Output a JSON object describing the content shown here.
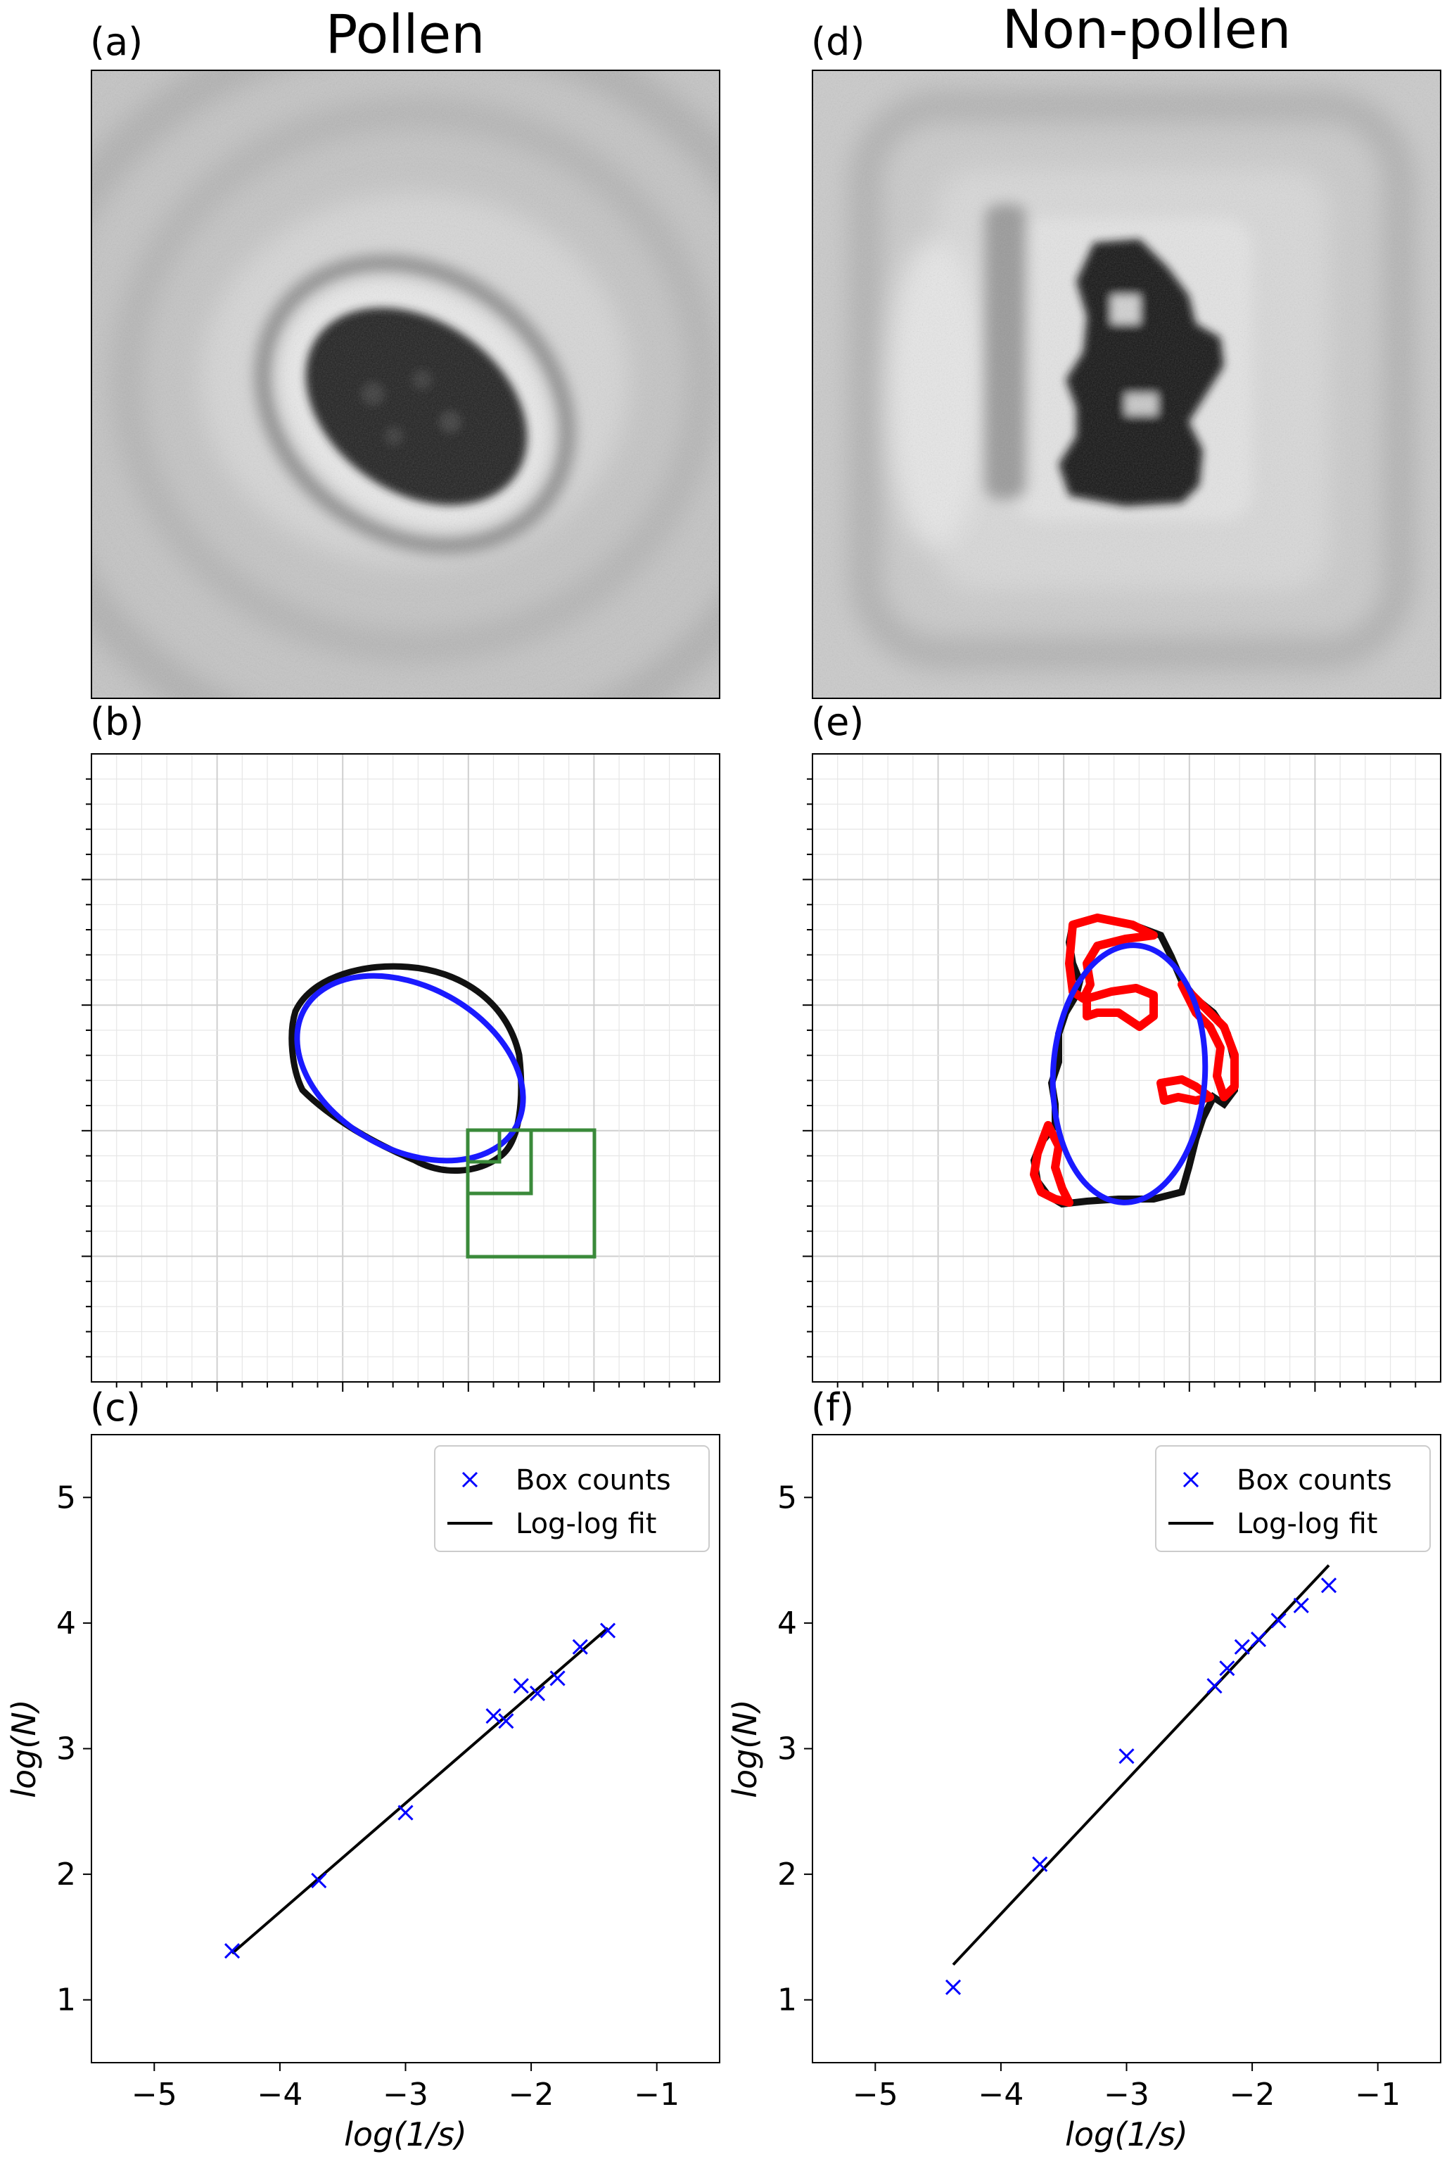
{
  "columns": [
    {
      "id": "left",
      "title": "Pollen"
    },
    {
      "id": "right",
      "title": "Non-pollen"
    }
  ],
  "panels": {
    "a": {
      "label": "(a)",
      "kind": "image",
      "description": "holographic grayscale image of a pollen grain"
    },
    "b": {
      "label": "(b)",
      "kind": "contour"
    },
    "c": {
      "label": "(c)",
      "kind": "plot"
    },
    "d": {
      "label": "(d)",
      "kind": "image",
      "description": "holographic grayscale image of a non-pollen particle"
    },
    "e": {
      "label": "(e)",
      "kind": "contour"
    },
    "f": {
      "label": "(f)",
      "kind": "plot"
    }
  },
  "colors": {
    "box_counts": "#0000ff",
    "fit_line": "#000000",
    "ellipse": "#1a1aff",
    "contour": "#111111",
    "deviation": "#ff0000",
    "boxes": "#3a8a3a",
    "grid": "#d9d9d9"
  },
  "chart_data": [
    {
      "panel": "c",
      "type": "scatter",
      "xlabel": "log(1/s)",
      "ylabel": "log(N)",
      "xlim": [
        -5.5,
        -0.5
      ],
      "ylim": [
        0.5,
        5.5
      ],
      "xticks": [
        -5,
        -4,
        -3,
        -2,
        -1
      ],
      "yticks": [
        1,
        2,
        3,
        4,
        5
      ],
      "xtick_labels": [
        "−5",
        "−4",
        "−3",
        "−2",
        "−1"
      ],
      "ytick_labels": [
        "1",
        "2",
        "3",
        "4",
        "5"
      ],
      "legend": {
        "position": "upper-right",
        "entries": [
          "Box counts",
          "Log-log fit"
        ]
      },
      "series": [
        {
          "name": "Box counts",
          "type": "scatter",
          "marker": "x",
          "x": [
            -4.38,
            -3.69,
            -3.0,
            -2.3,
            -2.2,
            -2.08,
            -1.95,
            -1.79,
            -1.61,
            -1.39
          ],
          "y": [
            1.39,
            1.95,
            2.49,
            3.26,
            3.22,
            3.5,
            3.44,
            3.56,
            3.81,
            3.94
          ]
        },
        {
          "name": "Log-log fit",
          "type": "line",
          "x": [
            -4.38,
            -1.39
          ],
          "y": [
            1.37,
            3.96
          ]
        }
      ]
    },
    {
      "panel": "f",
      "type": "scatter",
      "xlabel": "log(1/s)",
      "ylabel": "log(N)",
      "xlim": [
        -5.5,
        -0.5
      ],
      "ylim": [
        0.5,
        5.5
      ],
      "xticks": [
        -5,
        -4,
        -3,
        -2,
        -1
      ],
      "yticks": [
        1,
        2,
        3,
        4,
        5
      ],
      "xtick_labels": [
        "−5",
        "−4",
        "−3",
        "−2",
        "−1"
      ],
      "ytick_labels": [
        "1",
        "2",
        "3",
        "4",
        "5"
      ],
      "legend": {
        "position": "upper-right",
        "entries": [
          "Box counts",
          "Log-log fit"
        ]
      },
      "series": [
        {
          "name": "Box counts",
          "type": "scatter",
          "marker": "x",
          "x": [
            -4.38,
            -3.69,
            -3.0,
            -2.3,
            -2.2,
            -2.08,
            -1.95,
            -1.79,
            -1.61,
            -1.39
          ],
          "y": [
            1.1,
            2.08,
            2.94,
            3.5,
            3.64,
            3.81,
            3.87,
            4.02,
            4.14,
            4.3
          ]
        },
        {
          "name": "Log-log fit",
          "type": "line",
          "x": [
            -4.38,
            -1.39
          ],
          "y": [
            1.28,
            4.46
          ]
        }
      ]
    }
  ]
}
